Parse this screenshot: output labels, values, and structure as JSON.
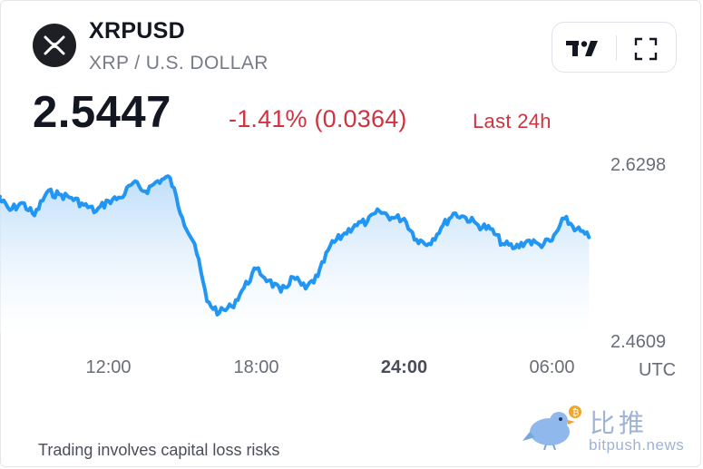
{
  "header": {
    "symbol": "XRPUSD",
    "description": "XRP / U.S. DOLLAR",
    "logo_icon": "xrp-logo-icon"
  },
  "toolbar": {
    "brand_icon": "tradingview-logo-icon",
    "fullscreen_icon": "fullscreen-icon"
  },
  "quote": {
    "price": "2.5447",
    "change": "-1.41% (0.0364)",
    "period": "Last 24h",
    "change_color": "#cf3340"
  },
  "footer": {
    "risk_notice": "Trading involves capital loss risks"
  },
  "watermark": {
    "name_cn": "比推",
    "url": "bitpush.news",
    "icon": "bird-icon"
  },
  "chart_data": {
    "type": "area",
    "line_color": "#2196f3",
    "y_ticks": [
      "2.6298",
      "2.4609"
    ],
    "y_tick_values": [
      2.6298,
      2.4609
    ],
    "x_ticks": [
      {
        "label": "12:00",
        "hour": 12,
        "bold": false
      },
      {
        "label": "18:00",
        "hour": 18,
        "bold": false
      },
      {
        "label": "24:00",
        "hour": 24,
        "bold": true
      },
      {
        "label": "06:00",
        "hour": 30,
        "bold": false
      }
    ],
    "timezone": "UTC",
    "series": [
      {
        "x_hours": [
          7.5,
          8,
          8.5,
          9,
          9.5,
          10,
          10.5,
          11,
          11.5,
          12,
          12.5,
          13,
          13.5,
          14,
          14.5,
          15,
          15.5,
          16,
          16.5,
          17,
          17.5,
          18,
          18.5,
          19,
          19.5,
          20,
          20.5,
          21,
          21.5,
          22,
          22.5,
          23,
          23.5,
          24,
          24.5,
          25,
          25.5,
          26,
          26.5,
          27,
          27.5,
          28,
          28.5,
          29,
          29.5,
          30,
          30.5,
          31,
          31.5
        ],
        "values": [
          2.598,
          2.585,
          2.592,
          2.58,
          2.602,
          2.6,
          2.597,
          2.59,
          2.584,
          2.594,
          2.597,
          2.611,
          2.603,
          2.613,
          2.616,
          2.578,
          2.553,
          2.498,
          2.487,
          2.493,
          2.511,
          2.529,
          2.518,
          2.507,
          2.521,
          2.51,
          2.522,
          2.551,
          2.561,
          2.571,
          2.574,
          2.584,
          2.578,
          2.577,
          2.557,
          2.553,
          2.568,
          2.582,
          2.578,
          2.571,
          2.567,
          2.553,
          2.549,
          2.556,
          2.552,
          2.556,
          2.577,
          2.567,
          2.559
        ]
      }
    ]
  }
}
